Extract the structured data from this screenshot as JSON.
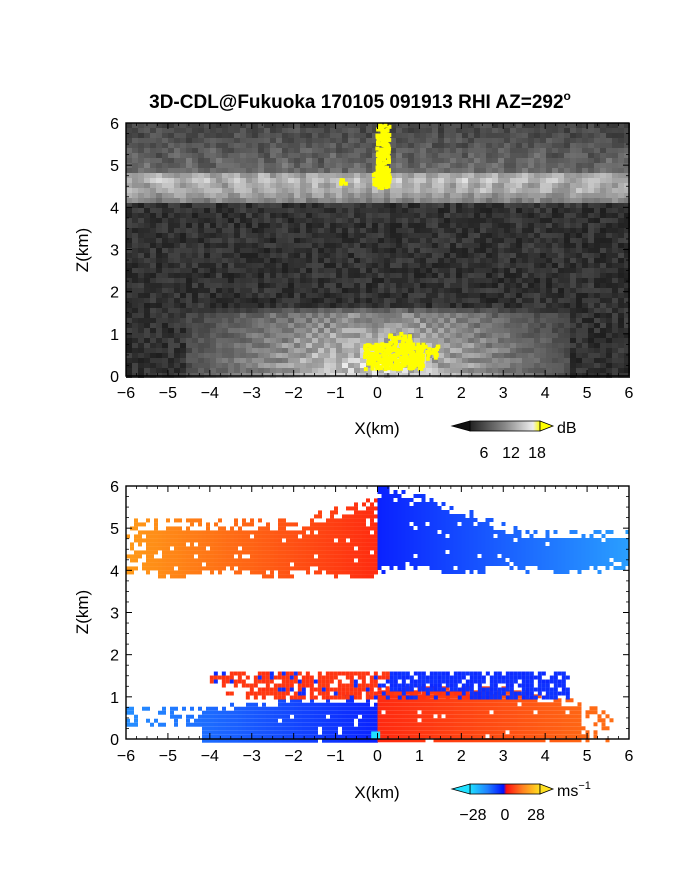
{
  "chart_data": [
    {
      "type": "heatmap",
      "title": "3D-CDL@Fukuoka 170105 091913 RHI AZ=292",
      "title_superscript": "o",
      "xlabel": "X(km)",
      "ylabel": "Z(km)",
      "xlim": [
        -6,
        6
      ],
      "ylim": [
        0,
        6
      ],
      "xticks": [
        -6,
        -5,
        -4,
        -3,
        -2,
        -1,
        0,
        1,
        2,
        3,
        4,
        5,
        6
      ],
      "yticks": [
        0,
        1,
        2,
        3,
        4,
        5,
        6
      ],
      "colormap": "grayscale with yellow above 18 dB",
      "highlight_color": "#ffff00",
      "colorbar": {
        "unit": "dB",
        "ticks": [
          "6",
          "12",
          "18"
        ]
      },
      "layers": [
        {
          "name": "upper cloud layer",
          "z_range": [
            4.0,
            5.0
          ],
          "x_range": [
            -6,
            6
          ]
        },
        {
          "name": "boundary layer",
          "z_range": [
            0.0,
            1.6
          ],
          "x_range": [
            -4.5,
            4.5
          ]
        }
      ]
    },
    {
      "type": "heatmap",
      "title": "",
      "xlabel": "X(km)",
      "ylabel": "Z(km)",
      "xlim": [
        -6,
        6
      ],
      "ylim": [
        0,
        6
      ],
      "xticks": [
        -6,
        -5,
        -4,
        -3,
        -2,
        -1,
        0,
        1,
        2,
        3,
        4,
        5,
        6
      ],
      "yticks": [
        0,
        1,
        2,
        3,
        4,
        5,
        6
      ],
      "colormap": "cyan-blue-red-yellow diverging",
      "colorbar": {
        "unit": "ms",
        "unit_superscript": "−1",
        "ticks": [
          "−28",
          "0",
          "28"
        ],
        "range": [
          -28,
          28
        ]
      },
      "colors": {
        "near_zero_neg": "#0a22ff",
        "near_zero_pos": "#ff2a10",
        "neg_far": "#2aa0ff",
        "pos_far": "#ff9a18"
      },
      "regions": [
        {
          "x_range": [
            -6.0,
            0.0
          ],
          "z_range": [
            3.9,
            5.7
          ],
          "velocity_sign": "positive"
        },
        {
          "x_range": [
            0.0,
            6.0
          ],
          "z_range": [
            4.0,
            6.0
          ],
          "velocity_sign": "negative"
        },
        {
          "x_range": [
            -4.0,
            0.0
          ],
          "z_range": [
            0.0,
            0.95
          ],
          "velocity_sign": "negative"
        },
        {
          "x_range": [
            0.0,
            5.5
          ],
          "z_range": [
            0.0,
            1.2
          ],
          "velocity_sign": "positive"
        },
        {
          "x_range": [
            -4.0,
            4.5
          ],
          "z_range": [
            1.0,
            1.6
          ],
          "velocity_sign": "mixed"
        }
      ]
    }
  ]
}
